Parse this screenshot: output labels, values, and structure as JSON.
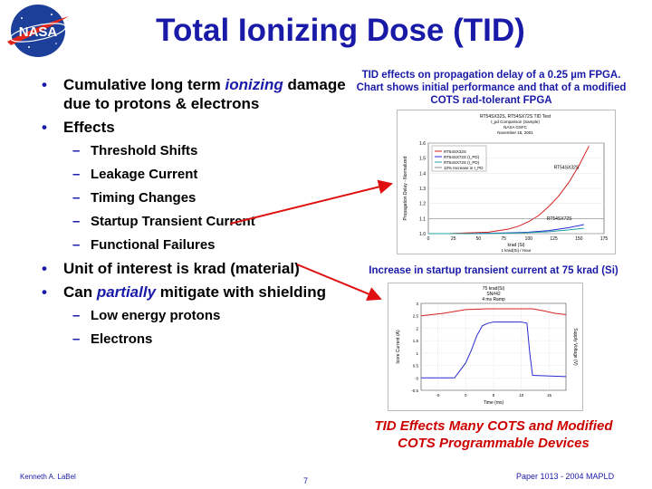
{
  "slide": {
    "title": "Total Ionizing Dose (TID)",
    "logo_text": "NASA",
    "bullets": [
      {
        "pre": "Cumulative long term ",
        "em": "ionizing",
        "post": " damage due to protons & electrons"
      },
      {
        "text": "Effects",
        "sub": [
          "Threshold Shifts",
          "Leakage Current",
          "Timing Changes",
          "Startup Transient Current",
          "Functional Failures"
        ]
      },
      {
        "text": "Unit of interest is krad (material)"
      },
      {
        "pre": "Can ",
        "em": "partially",
        "post": " mitigate with shielding",
        "sub": [
          "Low energy protons",
          "Electrons"
        ]
      }
    ],
    "caption_top": "TID effects on propagation delay of a 0.25 µm FPGA. Chart shows initial performance and that of a modified COTS rad-tolerant FPGA",
    "caption_mid": "Increase in startup transient current at 75 krad (Si)",
    "caption_bottom": "TID Effects Many COTS and Modified COTS Programmable Devices",
    "footer": {
      "author": "Kenneth A. LaBel",
      "page": "7",
      "paper": "Paper 1013 - 2004 MAPLD"
    },
    "colors": {
      "title": "#1a1aa8",
      "arrow": "#e01010",
      "caption_bottom": "#cc0000"
    }
  },
  "chart_data": [
    {
      "type": "line",
      "title": "RT54SX32S, RT54SX72S TID Test",
      "subtitle": [
        "t_pd Comparison (Sample)",
        "NASA GSFC",
        "November 15, 2001"
      ],
      "xlabel": "krad (Si)",
      "xlabel2": "1 krad(Si) / Hour",
      "ylabel": "Propagation Delay - Normalized",
      "xlim": [
        0,
        175
      ],
      "ylim": [
        1.0,
        1.6
      ],
      "x_ticks": [
        "0",
        "25",
        "50",
        "75",
        "100",
        "125",
        "150",
        "175"
      ],
      "y_ticks": [
        "1.0",
        "1.1",
        "1.2",
        "1.3",
        "1.4",
        "1.5",
        "1.6"
      ],
      "legend": [
        "RT54SX32S",
        "RT54SX72S (t_PD)",
        "RT54SX72S (t_PD)",
        "10% Increase in t_PD"
      ],
      "annotations": [
        "RT54SX32S",
        "RT54SX72S"
      ],
      "series": [
        {
          "name": "RT54SX32S",
          "x": [
            0,
            20,
            40,
            60,
            80,
            90,
            100,
            110,
            120,
            130,
            140,
            150,
            160
          ],
          "y": [
            1.0,
            1.0,
            1.005,
            1.01,
            1.03,
            1.05,
            1.08,
            1.12,
            1.18,
            1.25,
            1.34,
            1.45,
            1.58
          ]
        },
        {
          "name": "RT54SX72S (t_PD)",
          "x": [
            0,
            40,
            80,
            100,
            120,
            140,
            155
          ],
          "y": [
            1.0,
            1.0,
            1.005,
            1.01,
            1.02,
            1.04,
            1.06
          ]
        },
        {
          "name": "RT54SX72S (t_PD)",
          "x": [
            0,
            40,
            80,
            100,
            120,
            140,
            155
          ],
          "y": [
            1.0,
            1.0,
            1.003,
            1.007,
            1.013,
            1.025,
            1.035
          ]
        },
        {
          "name": "10% Increase in t_PD",
          "x": [
            0,
            175
          ],
          "y": [
            1.1,
            1.1
          ]
        }
      ]
    },
    {
      "type": "line",
      "title": "75 krad(Si)",
      "subtitle": [
        "SN#42",
        "4 ms Ramp"
      ],
      "xlabel": "Time (ms)",
      "ylabel": "Icore Current (A)",
      "ylabel2": "Supply Voltage (V)",
      "x_ticks": [
        "-5",
        "0",
        "5",
        "10",
        "15"
      ],
      "y_ticks": [
        "-0.5",
        "0",
        "0.5",
        "1",
        "1.5",
        "2",
        "2.5",
        "3"
      ],
      "xlim": [
        -8,
        18
      ],
      "ylim": [
        -0.5,
        3
      ],
      "series": [
        {
          "name": "voltage",
          "x": [
            -8,
            -4,
            0,
            4,
            8,
            12,
            14,
            16,
            18
          ],
          "y": [
            2.5,
            2.6,
            2.75,
            2.78,
            2.78,
            2.78,
            2.7,
            2.6,
            2.55
          ]
        },
        {
          "name": "current",
          "x": [
            -8,
            -2,
            -1,
            0,
            1,
            2,
            3,
            4,
            5,
            7,
            9,
            10,
            11,
            11.5,
            12,
            18
          ],
          "y": [
            0,
            0,
            0.3,
            0.6,
            1.1,
            1.7,
            2.1,
            2.2,
            2.25,
            2.25,
            2.25,
            2.25,
            2.2,
            1.0,
            0.1,
            0.05
          ]
        }
      ]
    }
  ]
}
